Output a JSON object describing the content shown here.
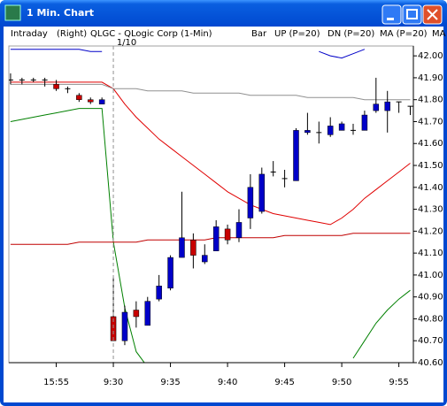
{
  "window_title": "1 Min. Chart",
  "chart_data": {
    "type": "candlestick",
    "header": [
      "Intraday",
      "(Right)",
      "QLGC - QLogic Corp (1-Min)",
      "Bar"
    ],
    "annotation": "1/10",
    "up_color": "#0000c8",
    "down_color": "#c80000",
    "flat_color": "#000000",
    "candles": {
      "open": [
        41.89,
        41.89,
        41.89,
        41.89,
        41.87,
        41.85,
        41.82,
        41.8,
        41.78,
        40.81,
        40.7,
        40.84,
        40.77,
        40.89,
        40.94,
        41.08,
        41.16,
        41.06,
        41.11,
        41.21,
        41.17,
        41.26,
        41.29,
        41.47,
        41.44,
        41.43,
        41.65,
        41.65,
        41.64,
        41.66,
        41.66,
        41.66,
        41.75,
        41.75,
        41.79,
        41.77
      ],
      "high": [
        41.92,
        41.9,
        41.9,
        41.9,
        41.89,
        41.86,
        41.83,
        41.81,
        41.81,
        40.99,
        40.86,
        40.88,
        40.9,
        41.0,
        41.09,
        41.38,
        41.19,
        41.14,
        41.25,
        41.23,
        41.3,
        41.46,
        41.49,
        41.52,
        41.48,
        41.67,
        41.74,
        41.7,
        41.72,
        41.7,
        41.69,
        41.75,
        41.9,
        41.84,
        41.79,
        41.77
      ],
      "low": [
        41.87,
        41.87,
        41.88,
        41.86,
        41.84,
        41.83,
        41.79,
        41.78,
        41.78,
        40.7,
        40.68,
        40.76,
        40.77,
        40.88,
        40.93,
        41.08,
        41.03,
        41.05,
        41.11,
        41.14,
        41.15,
        41.21,
        41.28,
        41.45,
        41.4,
        41.43,
        41.64,
        41.6,
        41.63,
        41.66,
        41.64,
        41.66,
        41.74,
        41.65,
        41.74,
        41.73
      ],
      "close": [
        41.89,
        41.89,
        41.89,
        41.89,
        41.85,
        41.85,
        41.8,
        41.79,
        41.8,
        40.7,
        40.83,
        40.81,
        40.88,
        40.95,
        41.08,
        41.17,
        41.09,
        41.09,
        41.22,
        41.16,
        41.24,
        41.4,
        41.46,
        41.47,
        41.44,
        41.66,
        41.66,
        41.65,
        41.68,
        41.69,
        41.66,
        41.73,
        41.78,
        41.79,
        41.79,
        41.77
      ]
    },
    "series": [
      {
        "name": "UP (P=20)",
        "color": "#0000c8",
        "values": [
          42.03,
          42.03,
          42.03,
          42.03,
          42.03,
          42.03,
          42.03,
          42.02,
          42.02,
          null,
          null,
          null,
          null,
          null,
          null,
          null,
          null,
          null,
          null,
          null,
          null,
          null,
          null,
          null,
          null,
          null,
          null,
          42.02,
          42.0,
          41.99,
          42.01,
          42.03,
          null,
          null,
          null,
          null
        ]
      },
      {
        "name": "DN (P=20)",
        "color": "#008000",
        "values": [
          41.7,
          41.71,
          41.72,
          41.73,
          41.74,
          41.75,
          41.76,
          41.76,
          41.76,
          41.15,
          40.85,
          40.65,
          40.58,
          null,
          null,
          null,
          null,
          null,
          null,
          null,
          null,
          null,
          null,
          null,
          null,
          null,
          null,
          null,
          null,
          null,
          40.62,
          40.7,
          40.78,
          40.84,
          40.89,
          40.93
        ]
      },
      {
        "name": "MA (P=20)",
        "color": "#e00000",
        "values": [
          41.88,
          41.88,
          41.88,
          41.88,
          41.88,
          41.88,
          41.88,
          41.88,
          41.88,
          41.85,
          41.78,
          41.72,
          41.67,
          41.62,
          41.58,
          41.54,
          41.5,
          41.46,
          41.42,
          41.38,
          41.35,
          41.32,
          41.3,
          41.28,
          41.27,
          41.26,
          41.25,
          41.24,
          41.23,
          41.26,
          41.3,
          41.35,
          41.39,
          41.43,
          41.47,
          41.51
        ]
      },
      {
        "name": "MA",
        "color": "#909090",
        "values": [
          41.87,
          41.87,
          41.87,
          41.87,
          41.87,
          41.87,
          41.87,
          41.87,
          41.87,
          41.85,
          41.85,
          41.85,
          41.84,
          41.84,
          41.84,
          41.84,
          41.83,
          41.83,
          41.83,
          41.83,
          41.83,
          41.82,
          41.82,
          41.82,
          41.82,
          41.82,
          41.81,
          41.81,
          41.81,
          41.81,
          41.81,
          41.8,
          41.8,
          41.8,
          41.8,
          41.8
        ]
      },
      {
        "color": "#c00000",
        "values": [
          41.14,
          41.14,
          41.14,
          41.14,
          41.14,
          41.14,
          41.15,
          41.15,
          41.15,
          41.15,
          41.15,
          41.15,
          41.16,
          41.16,
          41.16,
          41.16,
          41.16,
          41.16,
          41.17,
          41.17,
          41.17,
          41.17,
          41.17,
          41.17,
          41.18,
          41.18,
          41.18,
          41.18,
          41.18,
          41.18,
          41.19,
          41.19,
          41.19,
          41.19,
          41.19,
          41.19
        ]
      }
    ],
    "xlim": [
      -0.15,
      35.27
    ],
    "xticks": [
      {
        "value": 4,
        "label": "15:55"
      },
      {
        "value": 9,
        "label": "9:30"
      },
      {
        "value": 14,
        "label": "9:35"
      },
      {
        "value": 19,
        "label": "9:40"
      },
      {
        "value": 24,
        "label": "9:45"
      },
      {
        "value": 29,
        "label": "9:50"
      },
      {
        "value": 34,
        "label": "9:55"
      }
    ],
    "ylim": [
      40.6,
      42.045
    ],
    "yticks": [
      {
        "value": 40.6,
        "label": "40.60"
      },
      {
        "value": 40.7,
        "label": "40.70"
      },
      {
        "value": 40.8,
        "label": "40.80"
      },
      {
        "value": 40.9,
        "label": "40.90"
      },
      {
        "value": 41.0,
        "label": "41.00"
      },
      {
        "value": 41.1,
        "label": "41.10"
      },
      {
        "value": 41.2,
        "label": "41.20"
      },
      {
        "value": 41.3,
        "label": "41.30"
      },
      {
        "value": 41.4,
        "label": "41.40"
      },
      {
        "value": 41.5,
        "label": "41.50"
      },
      {
        "value": 41.6,
        "label": "41.60"
      },
      {
        "value": 41.7,
        "label": "41.70"
      },
      {
        "value": 41.8,
        "label": "41.80"
      },
      {
        "value": 41.9,
        "label": "41.90"
      },
      {
        "value": 42.0,
        "label": "42.00"
      }
    ],
    "separator_index": 9
  }
}
